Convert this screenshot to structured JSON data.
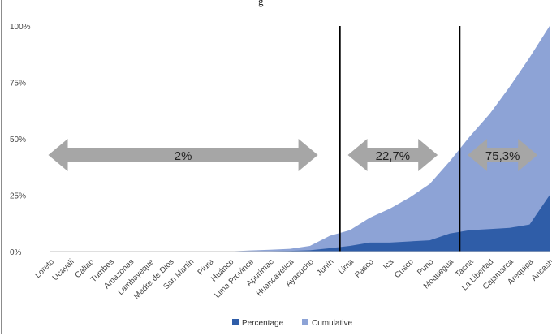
{
  "figure_title_fragment": "g",
  "chart_data": {
    "type": "area",
    "categories": [
      "Loreto",
      "Ucayali",
      "Callao",
      "Tumbes",
      "Amazonas",
      "Lambayeque",
      "Madre de Dios",
      "San Martin",
      "Piura",
      "Huánco",
      "Lima Province",
      "Apurímac",
      "Huancavelica",
      "Ayacucho",
      "Junín",
      "Lima",
      "Pasco",
      "Ica",
      "Cusco",
      "Puno",
      "Moquegua",
      "Tacna",
      "La Libertad",
      "Cajamarca",
      "Arequipa",
      "Ancash"
    ],
    "series": [
      {
        "name": "Percentage",
        "color": "#2f5da8",
        "values": [
          0,
          0,
          0,
          0,
          0,
          0,
          0,
          0,
          0,
          0.1,
          0.2,
          0.2,
          0.3,
          0.6,
          1.5,
          2.5,
          4,
          4,
          4.5,
          5,
          8,
          9.5,
          10,
          10.5,
          12,
          25
        ]
      },
      {
        "name": "Cumulative",
        "color": "#8da3d6",
        "values": [
          0,
          0,
          0,
          0,
          0,
          0,
          0,
          0,
          0,
          0.1,
          0.5,
          0.8,
          1.2,
          2.5,
          7,
          9.5,
          15,
          19,
          24,
          30,
          40,
          51,
          61,
          73,
          86,
          100
        ]
      }
    ],
    "y_ticks": [
      "0%",
      "25%",
      "50%",
      "75%",
      "100%"
    ],
    "ylim": [
      0,
      100
    ],
    "grid": false,
    "legend_position": "bottom-center",
    "dividers": [
      "Junín",
      "Moquegua"
    ],
    "segments": [
      {
        "label": "2%",
        "from": "Loreto",
        "to": "Ayacucho"
      },
      {
        "label": "22,7%",
        "from": "Lima",
        "to": "Puno"
      },
      {
        "label": "75,3%",
        "from": "Tacna",
        "to": "Arequipa"
      }
    ],
    "arrow_color": "#a6a6a6"
  }
}
